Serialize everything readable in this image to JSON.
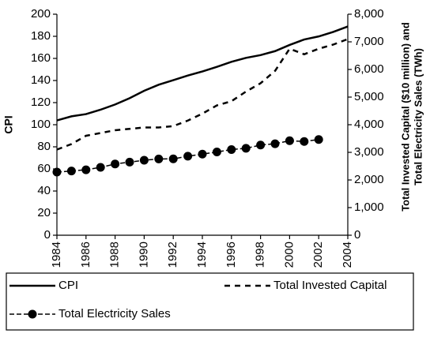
{
  "chart_data": {
    "type": "line",
    "y_label": "CPI",
    "y2_label": [
      "Total Invested Capital ($10 million) and",
      "Total Electricity Sales (TWh)"
    ],
    "x": [
      1984,
      1985,
      1986,
      1987,
      1988,
      1989,
      1990,
      1991,
      1992,
      1993,
      1994,
      1995,
      1996,
      1997,
      1998,
      1999,
      2000,
      2001,
      2002,
      2003,
      2004
    ],
    "xlim": [
      1984,
      2004
    ],
    "xticks": [
      1984,
      1986,
      1988,
      1990,
      1992,
      1994,
      1996,
      1998,
      2000,
      2002,
      2004
    ],
    "ylim": [
      0,
      200
    ],
    "yticks": [
      0,
      20,
      40,
      60,
      80,
      100,
      120,
      140,
      160,
      180,
      200
    ],
    "y2lim": [
      0,
      8000
    ],
    "y2ticks": [
      0,
      {
        "value": 1000,
        "label": "1,000"
      },
      {
        "value": 2000,
        "label": "2,000"
      },
      {
        "value": 3000,
        "label": "3,000"
      },
      {
        "value": 4000,
        "label": "4,000"
      },
      {
        "value": 5000,
        "label": "5,000"
      },
      {
        "value": 6000,
        "label": "6,000"
      },
      {
        "value": 7000,
        "label": "7,000"
      },
      {
        "value": 8000,
        "label": "8,000"
      }
    ],
    "legend": "bottom",
    "series": [
      {
        "name": "CPI",
        "color": "#000000",
        "style": "solid",
        "axis": "y",
        "values": [
          103.9,
          107.6,
          109.6,
          113.6,
          118.3,
          124.0,
          130.7,
          136.2,
          140.3,
          144.5,
          148.2,
          152.4,
          156.9,
          160.5,
          163.0,
          166.6,
          172.2,
          177.1,
          179.9,
          184.0,
          188.9
        ]
      },
      {
        "name": "Total Invested Capital",
        "color": "#000000",
        "style": "dashed",
        "axis": "y2",
        "values": [
          3100,
          3300,
          3600,
          3700,
          3800,
          3850,
          3900,
          3900,
          3950,
          4150,
          4400,
          4700,
          4850,
          5200,
          5500,
          5950,
          6750,
          6550,
          6750,
          6900,
          7100
        ]
      },
      {
        "name": "Total Electricity Sales",
        "color": "#000000",
        "style": "marker",
        "axis": "y2",
        "values": [
          2286,
          2324,
          2369,
          2457,
          2578,
          2647,
          2713,
          2762,
          2763,
          2861,
          2935,
          3013,
          3101,
          3146,
          3264,
          3312,
          3421,
          3394,
          3465,
          null,
          null
        ]
      }
    ]
  }
}
